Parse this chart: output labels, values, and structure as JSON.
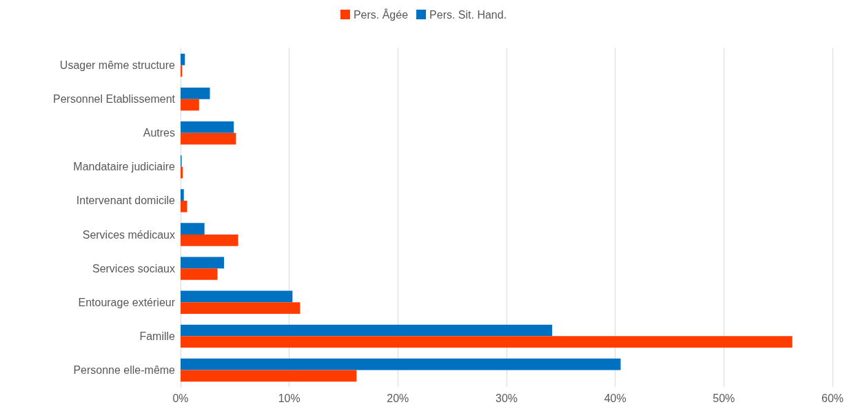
{
  "chart_data": {
    "type": "bar",
    "orientation": "horizontal",
    "categories": [
      "Usager même structure",
      "Personnel Etablissement",
      "Autres",
      "Mandataire judiciaire",
      "Intervenant domicile",
      "Services médicaux",
      "Services sociaux",
      "Entourage extérieur",
      "Famille",
      "Personne elle-même"
    ],
    "series": [
      {
        "name": "Pers. Âgée",
        "color": "#ff3c00",
        "values": [
          0.15,
          1.7,
          5.1,
          0.2,
          0.6,
          5.3,
          3.4,
          11.0,
          56.3,
          16.2
        ]
      },
      {
        "name": "Pers. Sit. Hand.",
        "color": "#0070c0",
        "values": [
          0.4,
          2.7,
          4.9,
          0.1,
          0.3,
          2.2,
          4.0,
          10.3,
          34.2,
          40.5
        ]
      }
    ],
    "xlim": [
      0,
      60
    ],
    "xticks": [
      {
        "value": 0,
        "label": "0%"
      },
      {
        "value": 10,
        "label": "10%"
      },
      {
        "value": 20,
        "label": "20%"
      },
      {
        "value": 30,
        "label": "30%"
      },
      {
        "value": 40,
        "label": "40%"
      },
      {
        "value": 50,
        "label": "50%"
      },
      {
        "value": 60,
        "label": "60%"
      }
    ],
    "grid": "x",
    "legend": "top"
  }
}
